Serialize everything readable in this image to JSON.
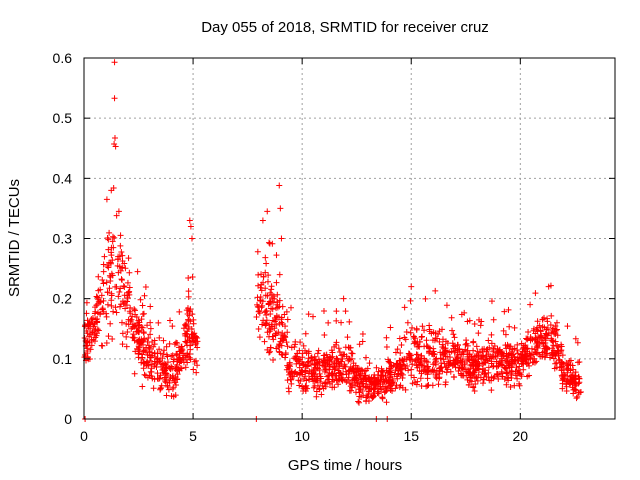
{
  "chart_data": {
    "type": "scatter",
    "title": "Day 055 of 2018, SRMTID for receiver cruz",
    "xlabel": "GPS time / hours",
    "ylabel": "SRMTID / TECUs",
    "xlim": [
      0,
      24.34
    ],
    "ylim": [
      0,
      0.6
    ],
    "xticks": [
      0,
      5,
      10,
      15,
      20
    ],
    "xtick_labels": [
      "0",
      "5",
      "10",
      "15",
      "20"
    ],
    "yticks": [
      0,
      0.1,
      0.2,
      0.3,
      0.4,
      0.5,
      0.6
    ],
    "ytick_labels": [
      "0",
      "0.1",
      "0.2",
      "0.3",
      "0.4",
      "0.5",
      "0.6"
    ],
    "grid": true,
    "marker": "+",
    "series": [
      {
        "name": "SRMTID",
        "color": "#ff0000",
        "segments": [
          {
            "start": 0.0,
            "end": 5.2,
            "envelope": [
              [
                0.0,
                0.04,
                0.16
              ],
              [
                0.3,
                0.06,
                0.18
              ],
              [
                0.6,
                0.08,
                0.22
              ],
              [
                1.0,
                0.08,
                0.28
              ],
              [
                1.3,
                0.06,
                0.34
              ],
              [
                1.7,
                0.05,
                0.3
              ],
              [
                2.1,
                0.05,
                0.24
              ],
              [
                2.5,
                0.03,
                0.18
              ],
              [
                3.0,
                0.02,
                0.15
              ],
              [
                3.5,
                0.01,
                0.13
              ],
              [
                4.0,
                0.01,
                0.12
              ],
              [
                4.5,
                0.02,
                0.14
              ],
              [
                4.8,
                0.04,
                0.2
              ],
              [
                5.2,
                0.04,
                0.16
              ]
            ]
          },
          {
            "start": 7.9,
            "end": 9.3,
            "envelope": [
              [
                7.9,
                0.06,
                0.22
              ],
              [
                8.3,
                0.05,
                0.27
              ],
              [
                8.7,
                0.04,
                0.24
              ],
              [
                9.0,
                0.03,
                0.22
              ],
              [
                9.3,
                0.02,
                0.2
              ]
            ]
          },
          {
            "start": 9.3,
            "end": 22.8,
            "envelope": [
              [
                9.3,
                0.02,
                0.13
              ],
              [
                10.0,
                0.01,
                0.12
              ],
              [
                11.0,
                0.01,
                0.12
              ],
              [
                12.0,
                0.01,
                0.13
              ],
              [
                12.5,
                0.01,
                0.09
              ],
              [
                13.0,
                0.01,
                0.08
              ],
              [
                14.0,
                0.01,
                0.1
              ],
              [
                15.0,
                0.02,
                0.14
              ],
              [
                16.0,
                0.03,
                0.15
              ],
              [
                17.0,
                0.03,
                0.13
              ],
              [
                18.0,
                0.03,
                0.12
              ],
              [
                19.0,
                0.03,
                0.13
              ],
              [
                20.0,
                0.04,
                0.13
              ],
              [
                21.0,
                0.07,
                0.17
              ],
              [
                21.6,
                0.05,
                0.16
              ],
              [
                22.0,
                0.02,
                0.1
              ],
              [
                22.8,
                0.02,
                0.08
              ]
            ]
          }
        ],
        "extremes": [
          {
            "x": 1.4,
            "y": 0.593
          },
          {
            "x": 1.4,
            "y": 0.533
          },
          {
            "x": 1.42,
            "y": 0.467
          },
          {
            "x": 1.38,
            "y": 0.457
          },
          {
            "x": 1.45,
            "y": 0.453
          },
          {
            "x": 1.05,
            "y": 0.365
          },
          {
            "x": 1.25,
            "y": 0.38
          },
          {
            "x": 1.6,
            "y": 0.345
          },
          {
            "x": 4.85,
            "y": 0.33
          },
          {
            "x": 4.9,
            "y": 0.32
          },
          {
            "x": 4.95,
            "y": 0.3
          },
          {
            "x": 8.95,
            "y": 0.388
          },
          {
            "x": 9.0,
            "y": 0.35
          },
          {
            "x": 9.05,
            "y": 0.3
          },
          {
            "x": 8.2,
            "y": 0.33
          },
          {
            "x": 8.4,
            "y": 0.345
          },
          {
            "x": 15.0,
            "y": 0.22
          },
          {
            "x": 16.1,
            "y": 0.213
          },
          {
            "x": 18.7,
            "y": 0.196
          },
          {
            "x": 21.3,
            "y": 0.22
          },
          {
            "x": 11.9,
            "y": 0.2
          },
          {
            "x": 0.05,
            "y": 0.0
          },
          {
            "x": 7.9,
            "y": 0.0
          },
          {
            "x": 13.4,
            "y": 0.0
          },
          {
            "x": 13.9,
            "y": 0.0
          }
        ],
        "approx_point_count": 2000
      }
    ]
  }
}
